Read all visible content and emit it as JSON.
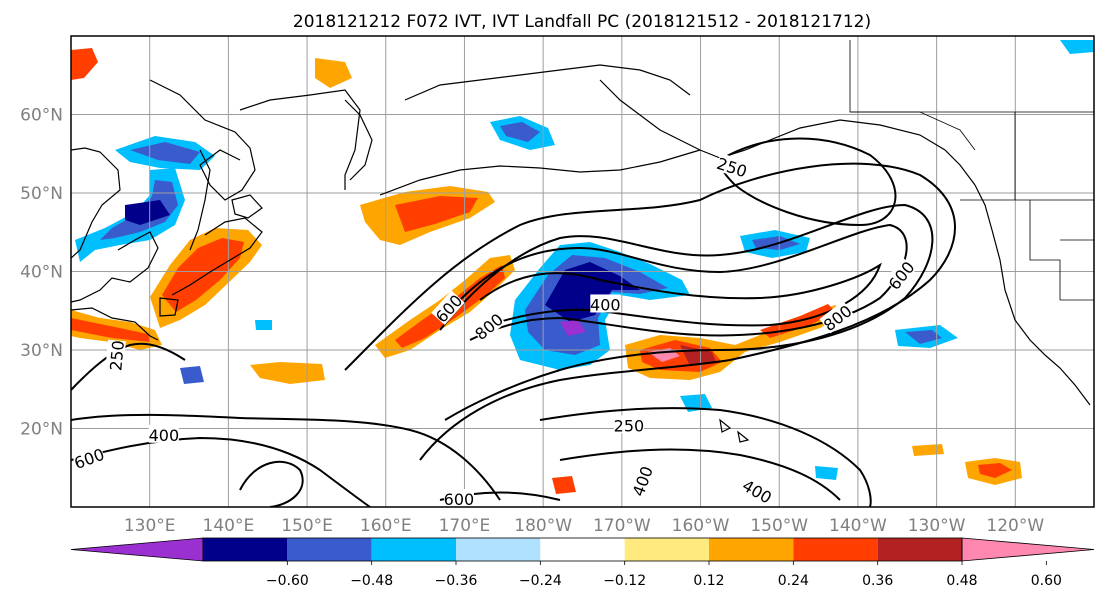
{
  "title": "2018121212 F072 IVT, IVT Landfall PC (2018121512 - 2018121712)",
  "map": {
    "lat_range": [
      10,
      70
    ],
    "lon_range_east": [
      120,
      250
    ],
    "lat_labels": [
      {
        "lat": 60,
        "text": "60°N"
      },
      {
        "lat": 50,
        "text": "50°N"
      },
      {
        "lat": 40,
        "text": "40°N"
      },
      {
        "lat": 30,
        "text": "30°N"
      },
      {
        "lat": 20,
        "text": "20°N"
      }
    ],
    "lon_labels": [
      {
        "lon": 130,
        "text": "130°E"
      },
      {
        "lon": 140,
        "text": "140°E"
      },
      {
        "lon": 150,
        "text": "150°E"
      },
      {
        "lon": 160,
        "text": "160°E"
      },
      {
        "lon": 170,
        "text": "170°E"
      },
      {
        "lon": 180,
        "text": "180°W"
      },
      {
        "lon": 190,
        "text": "170°W"
      },
      {
        "lon": 200,
        "text": "160°W"
      },
      {
        "lon": 210,
        "text": "150°W"
      },
      {
        "lon": 220,
        "text": "140°W"
      },
      {
        "lon": 230,
        "text": "130°W"
      },
      {
        "lon": 240,
        "text": "120°W"
      }
    ],
    "contour_levels": [
      {
        "lon": 204,
        "lat": 53.3,
        "text": "250",
        "angle": 18
      },
      {
        "lon": 225.5,
        "lat": 39.5,
        "text": "600",
        "angle": -52
      },
      {
        "lon": 217.4,
        "lat": 34.1,
        "text": "800",
        "angle": -38
      },
      {
        "lon": 187.9,
        "lat": 35.8,
        "text": "400",
        "angle": 0
      },
      {
        "lon": 168,
        "lat": 35.3,
        "text": "600",
        "angle": -48
      },
      {
        "lon": 173.1,
        "lat": 33,
        "text": "800",
        "angle": -40
      },
      {
        "lon": 125.8,
        "lat": 29.3,
        "text": "250",
        "angle": -85
      },
      {
        "lon": 131.8,
        "lat": 19.2,
        "text": "400",
        "angle": 0
      },
      {
        "lon": 122.3,
        "lat": 16.2,
        "text": "600",
        "angle": -20
      },
      {
        "lon": 190.9,
        "lat": 20.4,
        "text": "250",
        "angle": 0
      },
      {
        "lon": 192.6,
        "lat": 13.3,
        "text": "400",
        "angle": -70
      },
      {
        "lon": 207.2,
        "lat": 12,
        "text": "400",
        "angle": 30
      },
      {
        "lon": 169.3,
        "lat": 11,
        "text": "600",
        "angle": 0
      }
    ]
  },
  "colorbar": {
    "colors": [
      "#9b30d0",
      "#00008b",
      "#3a5bcc",
      "#00bfff",
      "#b0e2ff",
      "#ffffff",
      "#ffea80",
      "#ffa500",
      "#ff3e00",
      "#b22222",
      "#ff88b0"
    ],
    "tick_labels": [
      "−0.60",
      "−0.48",
      "−0.36",
      "−0.24",
      "−0.12",
      "0.12",
      "0.24",
      "0.36",
      "0.48",
      "0.60"
    ]
  }
}
